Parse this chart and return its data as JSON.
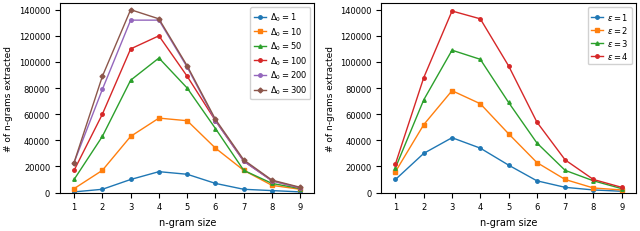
{
  "left": {
    "xlabel": "n-gram size",
    "ylabel": "# of n-grams extracted",
    "ylim": [
      0,
      145000
    ],
    "yticks": [
      0,
      20000,
      40000,
      60000,
      80000,
      100000,
      120000,
      140000
    ],
    "xticks": [
      1,
      2,
      3,
      4,
      5,
      6,
      7,
      8,
      9
    ],
    "series": [
      {
        "label": "$\\Delta_0 = 1$",
        "color": "#1f77b4",
        "marker": "o",
        "data": [
          500,
          2500,
          10000,
          16000,
          14000,
          7000,
          2500,
          1500,
          500
        ]
      },
      {
        "label": "$\\Delta_0 = 10$",
        "color": "#ff7f0e",
        "marker": "s",
        "data": [
          3000,
          17000,
          43000,
          57000,
          55000,
          34000,
          17000,
          5500,
          2500
        ]
      },
      {
        "label": "$\\Delta_0 = 50$",
        "color": "#2ca02c",
        "marker": "^",
        "data": [
          10000,
          43000,
          86000,
          103000,
          80000,
          49000,
          17000,
          7000,
          3000
        ]
      },
      {
        "label": "$\\Delta_0 = 100$",
        "color": "#d62728",
        "marker": "o",
        "data": [
          17000,
          60000,
          110000,
          120000,
          89000,
          55000,
          24000,
          9000,
          3500
        ]
      },
      {
        "label": "$\\Delta_0 = 200$",
        "color": "#9467bd",
        "marker": "o",
        "data": [
          23000,
          79000,
          132000,
          132000,
          96000,
          55000,
          24000,
          9000,
          3500
        ]
      },
      {
        "label": "$\\Delta_0 = 300$",
        "color": "#8c564b",
        "marker": "D",
        "data": [
          23000,
          89000,
          140000,
          133000,
          97000,
          56000,
          25000,
          9500,
          4000
        ]
      }
    ],
    "legend_loc": "upper right"
  },
  "right": {
    "xlabel": "n-gram size",
    "ylabel": "# of n-grams extracted",
    "ylim": [
      0,
      145000
    ],
    "yticks": [
      0,
      20000,
      40000,
      60000,
      80000,
      100000,
      120000,
      140000
    ],
    "xticks": [
      1,
      2,
      3,
      4,
      5,
      6,
      7,
      8,
      9
    ],
    "series": [
      {
        "label": "$\\varepsilon = 1$",
        "color": "#1f77b4",
        "marker": "o",
        "data": [
          10000,
          30000,
          42000,
          34000,
          21000,
          9000,
          4000,
          2000,
          1000
        ]
      },
      {
        "label": "$\\varepsilon = 2$",
        "color": "#ff7f0e",
        "marker": "s",
        "data": [
          16000,
          52000,
          78000,
          68000,
          45000,
          23000,
          10000,
          3500,
          2000
        ]
      },
      {
        "label": "$\\varepsilon = 3$",
        "color": "#2ca02c",
        "marker": "^",
        "data": [
          19000,
          71000,
          109000,
          102000,
          69000,
          38000,
          17000,
          9000,
          3000
        ]
      },
      {
        "label": "$\\varepsilon = 4$",
        "color": "#d62728",
        "marker": "o",
        "data": [
          22000,
          88000,
          139000,
          133000,
          97000,
          54000,
          25000,
          10000,
          4000
        ]
      }
    ],
    "legend_loc": "upper right"
  },
  "figsize": [
    6.4,
    2.32
  ],
  "dpi": 100
}
